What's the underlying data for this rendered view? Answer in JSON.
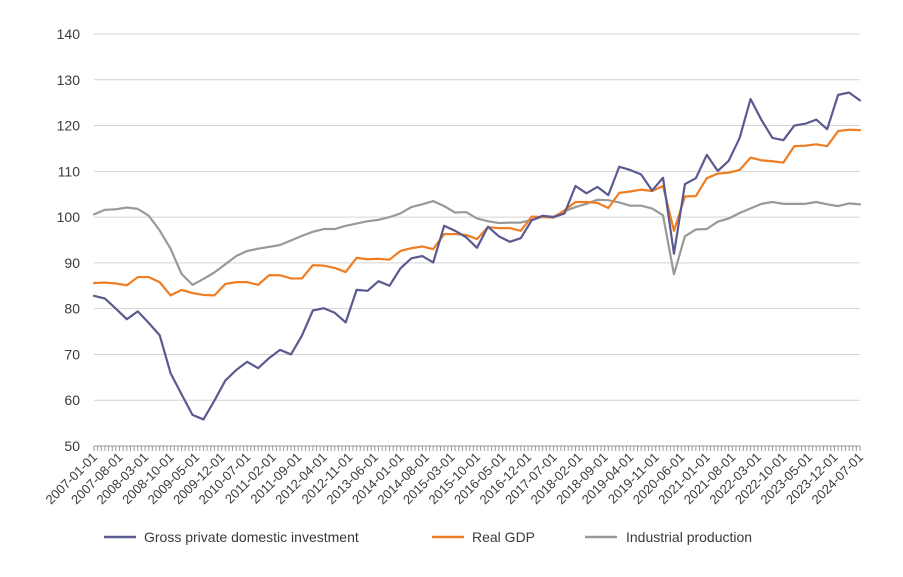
{
  "chart_data": {
    "type": "line",
    "title": "",
    "xlabel": "",
    "ylabel": "",
    "ylim": [
      50,
      140
    ],
    "yticks": [
      50,
      60,
      70,
      80,
      90,
      100,
      110,
      120,
      130,
      140
    ],
    "grid": "horizontal",
    "legend_position": "bottom",
    "x_tick_labels": [
      "2007-01-01",
      "2007-08-01",
      "2008-03-01",
      "2008-10-01",
      "2009-05-01",
      "2009-12-01",
      "2010-07-01",
      "2011-02-01",
      "2011-09-01",
      "2012-04-01",
      "2012-11-01",
      "2013-06-01",
      "2014-01-01",
      "2014-08-01",
      "2015-03-01",
      "2015-10-01",
      "2016-05-01",
      "2016-12-01",
      "2017-07-01",
      "2018-02-01",
      "2018-09-01",
      "2019-04-01",
      "2019-11-01",
      "2020-06-01",
      "2021-01-01",
      "2021-08-01",
      "2022-03-01",
      "2022-10-01",
      "2023-05-01",
      "2023-12-01",
      "2024-07-01"
    ],
    "x_quarters": [
      "2007-01-01",
      "2007-04-01",
      "2007-07-01",
      "2007-10-01",
      "2008-01-01",
      "2008-04-01",
      "2008-07-01",
      "2008-10-01",
      "2009-01-01",
      "2009-04-01",
      "2009-07-01",
      "2009-10-01",
      "2010-01-01",
      "2010-04-01",
      "2010-07-01",
      "2010-10-01",
      "2011-01-01",
      "2011-04-01",
      "2011-07-01",
      "2011-10-01",
      "2012-01-01",
      "2012-04-01",
      "2012-07-01",
      "2012-10-01",
      "2013-01-01",
      "2013-04-01",
      "2013-07-01",
      "2013-10-01",
      "2014-01-01",
      "2014-04-01",
      "2014-07-01",
      "2014-10-01",
      "2015-01-01",
      "2015-04-01",
      "2015-07-01",
      "2015-10-01",
      "2016-01-01",
      "2016-04-01",
      "2016-07-01",
      "2016-10-01",
      "2017-01-01",
      "2017-04-01",
      "2017-07-01",
      "2017-10-01",
      "2018-01-01",
      "2018-04-01",
      "2018-07-01",
      "2018-10-01",
      "2019-01-01",
      "2019-04-01",
      "2019-07-01",
      "2019-10-01",
      "2020-01-01",
      "2020-04-01",
      "2020-07-01",
      "2020-10-01",
      "2021-01-01",
      "2021-04-01",
      "2021-07-01",
      "2021-10-01",
      "2022-01-01",
      "2022-04-01",
      "2022-07-01",
      "2022-10-01",
      "2023-01-01",
      "2023-04-01",
      "2023-07-01",
      "2023-10-01",
      "2024-01-01",
      "2024-04-01",
      "2024-07-01"
    ],
    "series": [
      {
        "name": "Gross private domestic investment",
        "color": "#5a5a91",
        "values": [
          82.8,
          82.2,
          80.0,
          77.7,
          79.4,
          76.9,
          74.2,
          65.9,
          61.3,
          56.8,
          55.8,
          59.9,
          64.3,
          66.6,
          68.4,
          67.0,
          69.2,
          71.0,
          70.0,
          74.1,
          79.6,
          80.1,
          79.1,
          77.0,
          84.1,
          83.9,
          86.0,
          85.0,
          88.8,
          91.0,
          91.5,
          90.1,
          98.1,
          97.0,
          95.6,
          93.3,
          97.9,
          95.8,
          94.6,
          95.4,
          99.3,
          100.3,
          100.0,
          100.8,
          106.8,
          105.2,
          106.6,
          104.8,
          111.0,
          110.3,
          109.3,
          105.8,
          108.6,
          92.0,
          107.2,
          108.5,
          113.6,
          110.1,
          112.3,
          117.3,
          125.8,
          121.2,
          117.3,
          116.8,
          120.0,
          120.4,
          121.3,
          119.2,
          126.7,
          127.2,
          125.5
        ]
      },
      {
        "name": "Real GDP",
        "color": "#f07d22",
        "values": [
          85.6,
          85.7,
          85.5,
          85.1,
          86.9,
          86.9,
          85.8,
          82.9,
          84.1,
          83.4,
          83.0,
          82.9,
          85.4,
          85.8,
          85.8,
          85.2,
          87.3,
          87.3,
          86.6,
          86.6,
          89.5,
          89.4,
          88.9,
          88.0,
          91.1,
          90.8,
          90.9,
          90.7,
          92.6,
          93.2,
          93.6,
          93.0,
          96.3,
          96.3,
          96.1,
          95.2,
          97.8,
          97.6,
          97.6,
          97.0,
          100.1,
          100.0,
          99.9,
          101.5,
          103.3,
          103.3,
          103.1,
          102.0,
          105.3,
          105.6,
          106.0,
          105.7,
          106.8,
          97.0,
          104.5,
          104.6,
          108.5,
          109.5,
          109.7,
          110.3,
          113.0,
          112.4,
          112.2,
          111.9,
          115.5,
          115.6,
          115.9,
          115.5,
          118.8,
          119.1,
          119.0
        ]
      },
      {
        "name": "Industrial production",
        "color": "#999999",
        "values": [
          100.6,
          101.6,
          101.7,
          102.1,
          101.8,
          100.3,
          97.1,
          93.1,
          87.6,
          85.2,
          86.5,
          87.9,
          89.7,
          91.5,
          92.6,
          93.1,
          93.5,
          93.9,
          94.9,
          95.9,
          96.8,
          97.4,
          97.4,
          98.1,
          98.6,
          99.1,
          99.4,
          100.0,
          100.8,
          102.2,
          102.8,
          103.5,
          102.4,
          101.0,
          101.1,
          99.7,
          99.1,
          98.7,
          98.8,
          98.8,
          99.4,
          100.1,
          100.1,
          101.3,
          102.2,
          102.9,
          103.8,
          103.7,
          103.2,
          102.5,
          102.5,
          101.9,
          100.4,
          87.5,
          95.8,
          97.3,
          97.4,
          99.0,
          99.7,
          100.9,
          101.9,
          102.9,
          103.3,
          102.9,
          102.9,
          102.9,
          103.3,
          102.8,
          102.4,
          103.0,
          102.8
        ]
      }
    ]
  }
}
